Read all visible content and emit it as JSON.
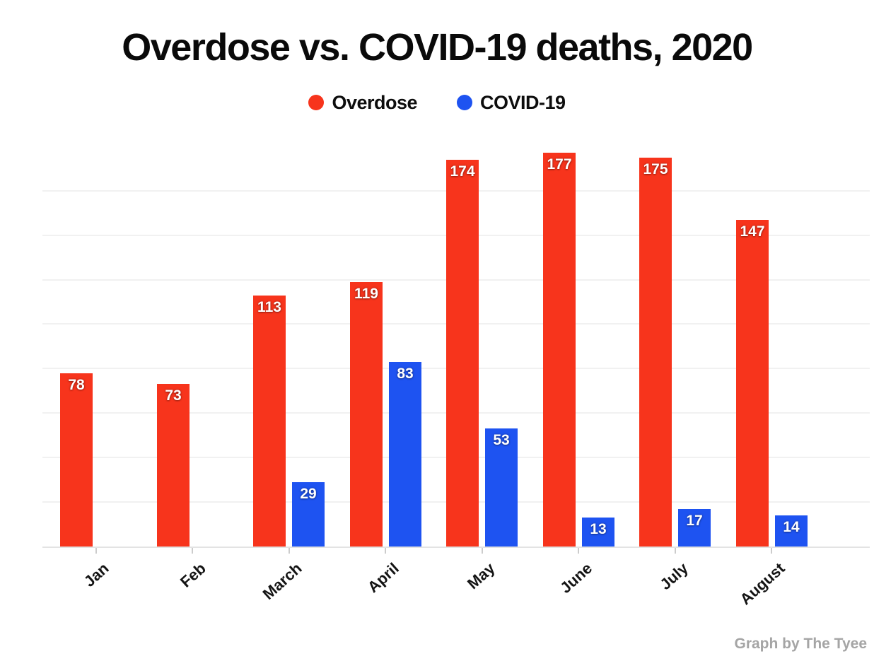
{
  "title": "Overdose vs. COVID-19 deaths, 2020",
  "legend": [
    {
      "label": "Overdose",
      "color": "#f7341c"
    },
    {
      "label": "COVID-19",
      "color": "#1e53f1"
    }
  ],
  "attribution": "Graph by The Tyee",
  "chart_data": {
    "type": "bar",
    "title": "Overdose vs. COVID-19 deaths, 2020",
    "categories": [
      "Jan",
      "Feb",
      "March",
      "April",
      "May",
      "June",
      "July",
      "August"
    ],
    "series": [
      {
        "name": "Overdose",
        "color": "#f7341c",
        "values": [
          78,
          73,
          113,
          119,
          174,
          177,
          175,
          147
        ]
      },
      {
        "name": "COVID-19",
        "color": "#1e53f1",
        "values": [
          null,
          null,
          29,
          83,
          53,
          13,
          17,
          14
        ]
      }
    ],
    "xlabel": "",
    "ylabel": "",
    "ylim": [
      0,
      180
    ],
    "gridline_step": 20,
    "grid": "horizontal",
    "y_tick_labels_shown": false,
    "legend_position": "top",
    "bar_labels": "inside-top"
  }
}
